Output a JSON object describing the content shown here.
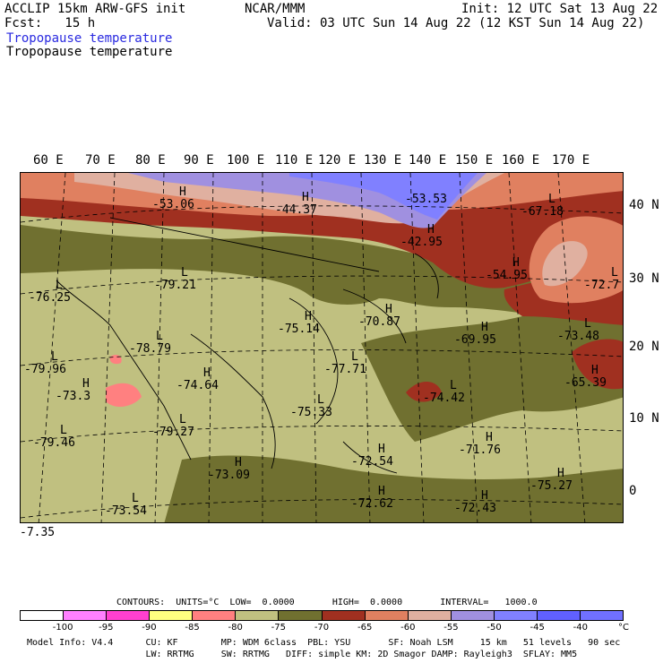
{
  "header": {
    "line1_left": "ACCLIP 15km ARW-GFS init",
    "line1_center": "NCAR/MMM",
    "line1_right": "Init: 12 UTC Sat 13 Aug 22",
    "line2_left": "Fcst:   15 h",
    "line2_right": "Valid: 03 UTC Sun 14 Aug 22 (12 KST Sun 14 Aug 22)",
    "line3": "Tropopause temperature",
    "line4": "Tropopause temperature",
    "line3_color": "#2a2ae0"
  },
  "map": {
    "lon_labels": [
      "60 E",
      "70 E",
      "80 E",
      "90 E",
      "100 E",
      "110 E",
      "120 E",
      "130 E",
      "140 E",
      "150 E",
      "160 E",
      "170 E"
    ],
    "lat_labels": [
      "40 N",
      "30 N",
      "20 N",
      "10 N",
      "0"
    ],
    "annotations": [
      {
        "mark": "H",
        "value": "-53.06"
      },
      {
        "mark": "H",
        "value": "-44.37"
      },
      {
        "mark": "",
        "value": "-53.53"
      },
      {
        "mark": "H",
        "value": "-42.95"
      },
      {
        "mark": "L",
        "value": "-67.18"
      },
      {
        "mark": "L",
        "value": "-76.25"
      },
      {
        "mark": "L",
        "value": "-79.21"
      },
      {
        "mark": "H",
        "value": "-54.95"
      },
      {
        "mark": "L",
        "value": "-72.7"
      },
      {
        "mark": "H",
        "value": "-75.14"
      },
      {
        "mark": "H",
        "value": "-70.87"
      },
      {
        "mark": "H",
        "value": "-69.95"
      },
      {
        "mark": "L",
        "value": "-73.48"
      },
      {
        "mark": "L",
        "value": "-79.96"
      },
      {
        "mark": "L",
        "value": "-78.79"
      },
      {
        "mark": "H",
        "value": "-74.64"
      },
      {
        "mark": "L",
        "value": "-77.71"
      },
      {
        "mark": "H",
        "value": "-65.39"
      },
      {
        "mark": "H",
        "value": "-73.3"
      },
      {
        "mark": "L",
        "value": "-74.42"
      },
      {
        "mark": "L",
        "value": "-75.33"
      },
      {
        "mark": "L",
        "value": "-79.46"
      },
      {
        "mark": "L",
        "value": "-79.27"
      },
      {
        "mark": "H",
        "value": "-71.76"
      },
      {
        "mark": "H",
        "value": "-72.54"
      },
      {
        "mark": "H",
        "value": "-73.09"
      },
      {
        "mark": "H",
        "value": "-75.27"
      },
      {
        "mark": "",
        "value": "-7.35"
      },
      {
        "mark": "L",
        "value": "-73.54"
      },
      {
        "mark": "H",
        "value": "-72.62"
      },
      {
        "mark": "H",
        "value": "-72.43"
      }
    ]
  },
  "colorbar": {
    "colors": [
      "#ffffff",
      "#ff80ff",
      "#ff40d0",
      "#ffff80",
      "#ff8080",
      "#c0c080",
      "#707030",
      "#a03020",
      "#e08060",
      "#e0b0a0",
      "#a090e0",
      "#8080ff",
      "#6060ff",
      "#7070ff"
    ],
    "ticks": [
      "-100",
      "-95",
      "-90",
      "-85",
      "-80",
      "-75",
      "-70",
      "-65",
      "-60",
      "-55",
      "-50",
      "-45",
      "-40",
      "°C"
    ]
  },
  "footer": {
    "contours": "CONTOURS:  UNITS=°C  LOW=  0.0000       HIGH=  0.0000       INTERVAL=   1000.0",
    "model1": "Model Info: V4.4      CU: KF        MP: WDM 6class  PBL: YSU       SF: Noah LSM     15 km   51 levels   90 sec",
    "model2": "                      LW: RRTMG     SW: RRTMG   DIFF: simple KM: 2D Smagor DAMP: Rayleigh3  SFLAY: MM5"
  }
}
